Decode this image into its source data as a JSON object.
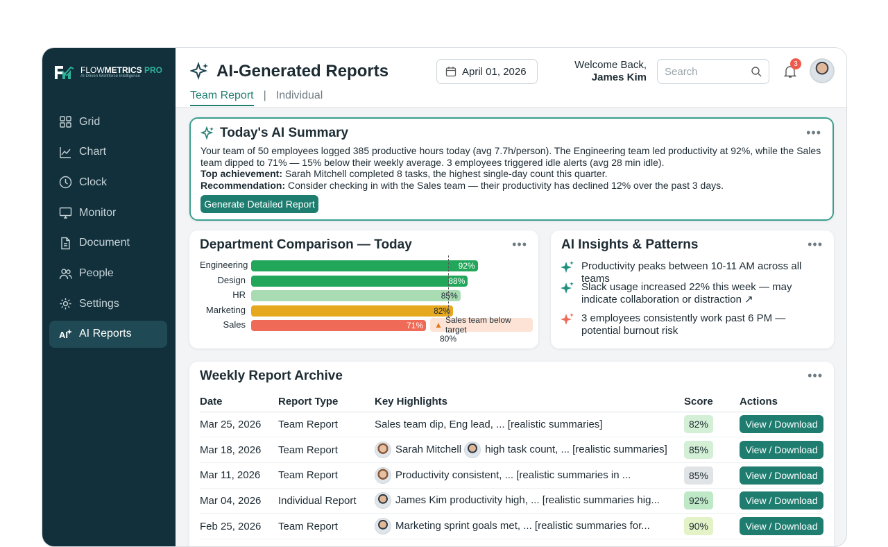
{
  "brand": {
    "name_light": "FLOW",
    "name_bold": "METRICS",
    "name_pro": "PRO",
    "tagline": "AI-Driven Workforce Intelligence"
  },
  "sidebar": {
    "items": [
      {
        "label": "Grid",
        "icon": "grid-icon"
      },
      {
        "label": "Chart",
        "icon": "chart-icon"
      },
      {
        "label": "Clock",
        "icon": "clock-icon"
      },
      {
        "label": "Monitor",
        "icon": "monitor-icon"
      },
      {
        "label": "Document",
        "icon": "document-icon"
      },
      {
        "label": "People",
        "icon": "people-icon"
      },
      {
        "label": "Settings",
        "icon": "gear-icon"
      },
      {
        "label": "AI Reports",
        "icon": "ai-sparkle-icon",
        "active": true
      }
    ]
  },
  "header": {
    "title": "AI-Generated Reports",
    "tabs": [
      "Team Report",
      "Individual"
    ],
    "separator": "|",
    "date": "April 01, 2026",
    "welcome": "Welcome Back,",
    "user": "James Kim",
    "search_placeholder": "Search",
    "notifications": "3"
  },
  "summary": {
    "title": "Today's AI Summary",
    "text": "Your team of 50 employees logged 385 productive hours today (avg 7.7h/person). The Engineering team led productivity at 92%, while the Sales team dipped to 71% — 15% below their weekly average. 3 employees triggered idle alerts (avg 28 min idle).",
    "achievement_label": "Top achievement:",
    "achievement": " Sarah Mitchell completed 8 tasks, the highest single-day count this quarter.",
    "recommendation_label": "Recommendation:",
    "recommendation": " Consider checking in with the Sales team — their productivity has declined 12% over the past 3 days.",
    "button": "Generate Detailed Report"
  },
  "department": {
    "title": "Department Comparison — Today",
    "target_label": "80%",
    "alert": "Sales team below target"
  },
  "chart_data": {
    "type": "bar",
    "orientation": "horizontal",
    "categories": [
      "Engineering",
      "Design",
      "HR",
      "Marketing",
      "Sales"
    ],
    "values": [
      92,
      88,
      85,
      82,
      71
    ],
    "value_labels": [
      "92%",
      "88%",
      "85%",
      "82%",
      "71%"
    ],
    "target": 80,
    "colors": [
      "#22a65a",
      "#22a65a",
      "#a9dcb3",
      "#e6a81e",
      "#ef6b57"
    ]
  },
  "insights": {
    "title": "AI Insights & Patterns",
    "items": [
      {
        "text": "Productivity peaks between 10-11 AM across all teams",
        "color": "#1f8f7f"
      },
      {
        "text": "Slack usage increased 22% this week — may indicate collaboration or distraction ↗",
        "color": "#1f8f7f"
      },
      {
        "text": "3 employees consistently work past 6 PM — potential burnout risk",
        "color": "#ef6b57"
      }
    ]
  },
  "archive": {
    "title": "Weekly Report Archive",
    "columns": [
      "Date",
      "Report Type",
      "Key Highlights",
      "Score",
      "Actions"
    ],
    "rows": [
      {
        "date": "Mar 25, 2026",
        "type": "Team Report",
        "highlights": "Sales team dip, Eng lead, ... [realistic summaries]",
        "avatars": [],
        "score": "82%",
        "score_color": "#d3efd6",
        "action": "View / Download"
      },
      {
        "date": "Mar 18, 2026",
        "type": "Team Report",
        "lead": "Sarah Mitchell",
        "highlights": "high task count, ... [realistic summaries]",
        "avatars": [
          "f",
          "m"
        ],
        "score": "85%",
        "score_color": "#d3efd6",
        "action": "View / Download"
      },
      {
        "date": "Mar 11, 2026",
        "type": "Team Report",
        "highlights": "Productivity consistent, ... [realistic summaries in ...",
        "avatars": [
          "f"
        ],
        "score": "85%",
        "score_color": "#e1e4e6",
        "action": "View / Download"
      },
      {
        "date": "Mar 04, 2026",
        "type": "Individual Report",
        "highlights": "James Kim productivity high, ... [realistic summaries hig...",
        "avatars": [
          "m"
        ],
        "score": "92%",
        "score_color": "#bfe8c6",
        "action": "View / Download"
      },
      {
        "date": "Feb 25, 2026",
        "type": "Team Report",
        "highlights": "Marketing sprint goals met, ... [realistic summaries for...",
        "avatars": [
          "m"
        ],
        "score": "90%",
        "score_color": "#e3f3c7",
        "action": "View / Download"
      }
    ]
  }
}
